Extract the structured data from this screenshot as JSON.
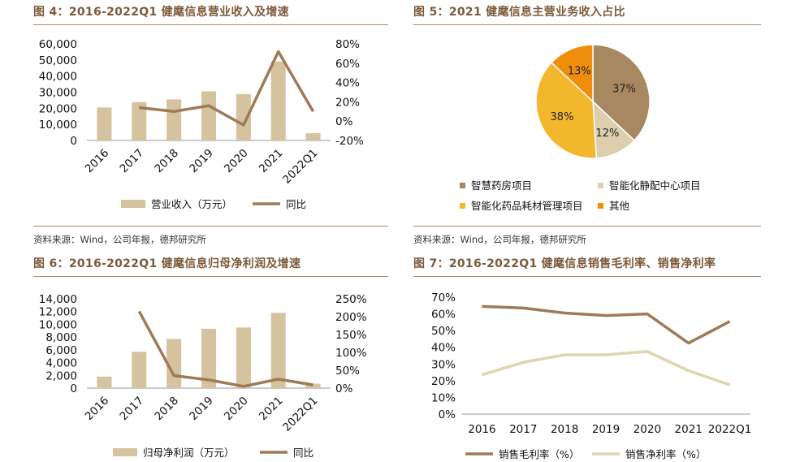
{
  "colors": {
    "bar": "#d5c29e",
    "line": "#a07a56",
    "line_light": "#e0d4b0",
    "title": "#7c5a3a",
    "rule": "#b08968"
  },
  "chart_data": [
    {
      "type": "bar",
      "title": "图 4：2016-2022Q1 健麾信息营业收入及增速",
      "categories": [
        "2016",
        "2017",
        "2018",
        "2019",
        "2020",
        "2021",
        "2022Q1"
      ],
      "series": [
        {
          "name": "营业收入（万元）",
          "type": "bar",
          "axis": "left",
          "values": [
            20500,
            23800,
            25500,
            30500,
            28800,
            49000,
            4500
          ]
        },
        {
          "name": "同比",
          "type": "line",
          "axis": "right",
          "values": [
            null,
            14,
            10,
            16,
            -4,
            72,
            10
          ]
        }
      ],
      "y_left": {
        "min": 0,
        "max": 60000,
        "ticks": [
          "0",
          "10,000",
          "20,000",
          "30,000",
          "40,000",
          "50,000",
          "60,000"
        ]
      },
      "y_right": {
        "min": -20,
        "max": 80,
        "ticks": [
          "-20%",
          "0%",
          "20%",
          "40%",
          "60%",
          "80%"
        ]
      },
      "source": "资料来源：Wind，公司年报，德邦研究所"
    },
    {
      "type": "pie",
      "title": "图 5：2021 健麾信息主营业务收入占比",
      "slices": [
        {
          "name": "智慧药房项目",
          "value": 37,
          "label": "37%",
          "color": "#a88860"
        },
        {
          "name": "智能化静配中心项目",
          "value": 12,
          "label": "12%",
          "color": "#dccfae"
        },
        {
          "name": "智能化药品耗材管理项目",
          "value": 38,
          "label": "38%",
          "color": "#f3b72e"
        },
        {
          "name": "其他",
          "value": 13,
          "label": "13%",
          "color": "#ef8e0b"
        }
      ],
      "source": "资料来源：Wind，公司年报，德邦研究所"
    },
    {
      "type": "bar",
      "title": "图 6：2016-2022Q1 健麾信息归母净利润及增速",
      "categories": [
        "2016",
        "2017",
        "2018",
        "2019",
        "2020",
        "2021",
        "2022Q1"
      ],
      "series": [
        {
          "name": "归母净利润（万元）",
          "type": "bar",
          "axis": "left",
          "values": [
            1800,
            5700,
            7700,
            9300,
            9500,
            11800,
            700
          ]
        },
        {
          "name": "同比",
          "type": "line",
          "axis": "right",
          "values": [
            null,
            215,
            35,
            23,
            5,
            25,
            9
          ]
        }
      ],
      "y_left": {
        "min": 0,
        "max": 14000,
        "ticks": [
          "0",
          "2,000",
          "4,000",
          "6,000",
          "8,000",
          "10,000",
          "12,000",
          "14,000"
        ]
      },
      "y_right": {
        "min": 0,
        "max": 250,
        "ticks": [
          "0%",
          "50%",
          "100%",
          "150%",
          "200%",
          "250%"
        ]
      }
    },
    {
      "type": "line",
      "title": "图 7：2016-2022Q1 健麾信息销售毛利率、销售净利率",
      "categories": [
        "2016",
        "2017",
        "2018",
        "2019",
        "2020",
        "2021",
        "2022Q1"
      ],
      "series": [
        {
          "name": "销售毛利率（%）",
          "values": [
            64.5,
            63.5,
            60.5,
            59,
            60,
            42.5,
            55.5
          ]
        },
        {
          "name": "销售净利率（%）",
          "values": [
            23.5,
            31,
            35.5,
            35.5,
            37.5,
            26,
            17.5
          ]
        }
      ],
      "y": {
        "min": 0,
        "max": 70,
        "ticks": [
          "0%",
          "10%",
          "20%",
          "30%",
          "40%",
          "50%",
          "60%",
          "70%"
        ]
      }
    }
  ]
}
